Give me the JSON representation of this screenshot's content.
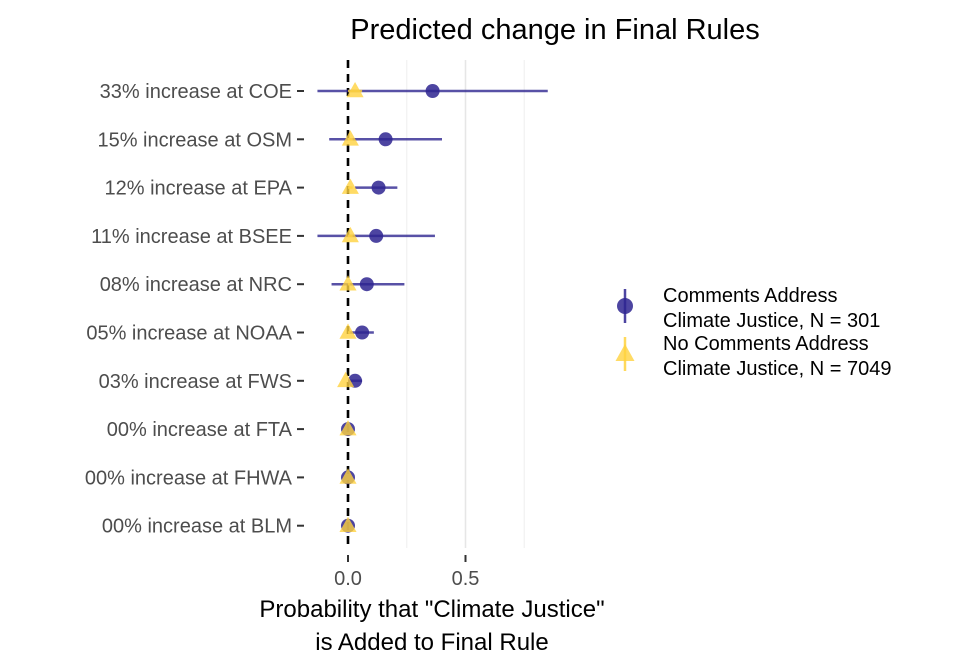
{
  "chart_data": {
    "type": "scatter",
    "title": "Predicted change in Final Rules",
    "xlabel": [
      "Probability that \"Climate Justice\"",
      "is Added to Final Rule"
    ],
    "ylabel": "",
    "xlim": [
      -0.15,
      0.85
    ],
    "x_ticks": [
      0.0,
      0.5
    ],
    "x_tick_labels": [
      "0.0",
      "0.5"
    ],
    "grid": "vertical major and minor lines",
    "reference_line": {
      "x": 0,
      "style": "dashed",
      "color": "#000000"
    },
    "categories": [
      "33% increase at COE",
      "15% increase at OSM",
      "12% increase at EPA",
      "11% increase at BSEE",
      "08% increase at NRC",
      "05% increase at NOAA",
      "03% increase at FWS",
      "00% increase at FTA",
      "00% increase at FHWA",
      "00% increase at BLM"
    ],
    "series": [
      {
        "name": "Comments Address\nClimate Justice, N = 301",
        "label_lines": [
          "Comments Address",
          "Climate Justice, N = 301"
        ],
        "marker": "circle",
        "color": "#2e2590",
        "estimate": [
          0.36,
          0.16,
          0.13,
          0.12,
          0.08,
          0.06,
          0.03,
          0.0,
          0.0,
          0.0
        ],
        "lower": [
          -0.13,
          -0.08,
          0.03,
          -0.13,
          -0.07,
          0.0,
          0.0,
          0.0,
          0.0,
          0.0
        ],
        "upper": [
          0.85,
          0.4,
          0.21,
          0.37,
          0.24,
          0.11,
          0.06,
          0.0,
          0.0,
          0.0
        ]
      },
      {
        "name": "No Comments Address\nClimate Justice, N = 7049",
        "label_lines": [
          "No Comments Address",
          "Climate Justice, N = 7049"
        ],
        "marker": "triangle",
        "color": "#ffd23f",
        "estimate": [
          0.03,
          0.01,
          0.01,
          0.01,
          0.0,
          0.0,
          -0.01,
          0.0,
          0.0,
          0.0
        ],
        "lower": [
          0.0,
          0.0,
          0.0,
          0.0,
          0.0,
          0.0,
          0.0,
          0.0,
          0.0,
          0.0
        ],
        "upper": [
          0.06,
          0.02,
          0.02,
          0.02,
          0.01,
          0.01,
          0.0,
          0.0,
          0.0,
          0.0
        ]
      }
    ],
    "legend_position": "right"
  }
}
